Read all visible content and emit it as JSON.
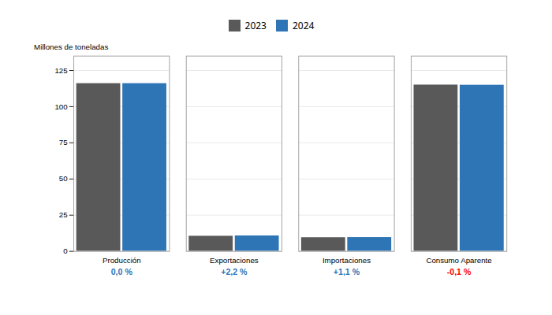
{
  "chart_data": {
    "type": "bar",
    "categories": [
      "Producción",
      "Exportaciones",
      "Importaciones",
      "Consumo Aparente"
    ],
    "series": [
      {
        "name": "2023",
        "color": "#595959",
        "values": [
          116.0,
          10.5,
          9.5,
          115.0
        ]
      },
      {
        "name": "2024",
        "color": "#2E75B6",
        "values": [
          116.0,
          10.73,
          9.605,
          114.885
        ]
      }
    ],
    "ylabel": "Millones de toneladas",
    "ylim": [
      0,
      135
    ],
    "yticks": [
      0,
      25,
      50,
      75,
      100,
      125
    ],
    "grid": true,
    "legend": "top",
    "annotations": [
      {
        "text": "0,0 %",
        "category": "Producción",
        "color": "#2E75B6"
      },
      {
        "text": "+2,2 %",
        "category": "Exportaciones",
        "color": "#2E75B6"
      },
      {
        "text": "+1,1 %",
        "category": "Importaciones",
        "color": "#2E75B6"
      },
      {
        "text": "-0,1 %",
        "category": "Consumo Aparente",
        "color": "#FF0000"
      }
    ]
  }
}
